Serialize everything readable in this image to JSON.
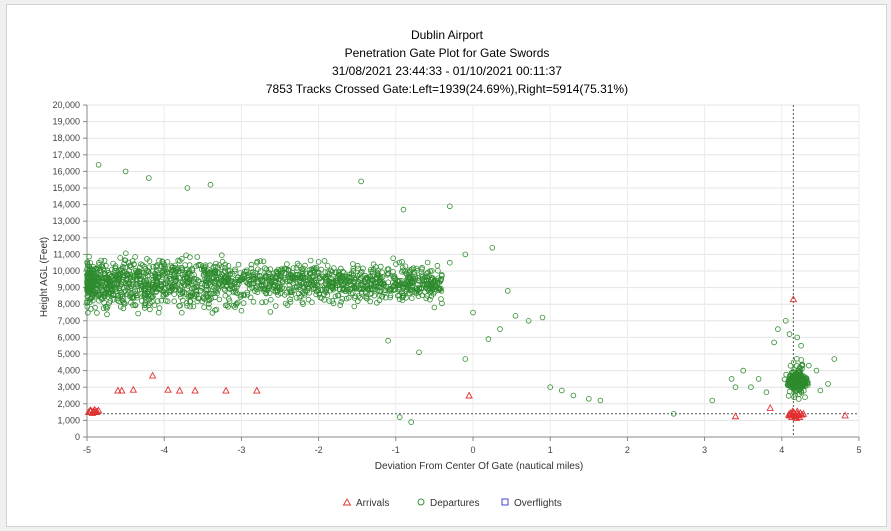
{
  "chart_data": {
    "type": "scatter",
    "title_lines": [
      "Dublin Airport",
      "Penetration Gate Plot for Gate Swords",
      "31/08/2021 23:44:33 - 01/10/2021 00:11:37",
      "7853 Tracks Crossed Gate:Left=1939(24.69%),Right=5914(75.31%)"
    ],
    "xlabel": "Deviation From Center Of Gate (nautical miles)",
    "ylabel": "Height AGL (Feet)",
    "xlim": [
      -5,
      5
    ],
    "ylim": [
      0,
      20000
    ],
    "x_ticks": [
      -5,
      -4,
      -3,
      -2,
      -1,
      0,
      1,
      2,
      3,
      4,
      5
    ],
    "x_tick_labels": [
      "-5",
      "-4",
      "-3",
      "-2",
      "-1",
      "0",
      "1",
      "2",
      "3",
      "4",
      "5"
    ],
    "y_ticks": [
      0,
      1000,
      2000,
      3000,
      4000,
      5000,
      6000,
      7000,
      8000,
      9000,
      10000,
      11000,
      12000,
      13000,
      14000,
      15000,
      16000,
      17000,
      18000,
      19000,
      20000
    ],
    "y_tick_labels": [
      "0",
      "1,000",
      "2,000",
      "3,000",
      "4,000",
      "5,000",
      "6,000",
      "7,000",
      "8,000",
      "9,000",
      "10,000",
      "11,000",
      "12,000",
      "13,000",
      "14,000",
      "15,000",
      "16,000",
      "17,000",
      "18,000",
      "19,000",
      "20,000"
    ],
    "grid": true,
    "reference_lines": {
      "vertical_x": 4.15,
      "horizontal_y": 1400
    },
    "legend_position": "bottom-center",
    "legend": [
      {
        "name": "Arrivals",
        "marker": "triangle",
        "color": "#e03030"
      },
      {
        "name": "Departures",
        "marker": "circle",
        "color": "#2e8b2e"
      },
      {
        "name": "Overflights",
        "marker": "square",
        "color": "#3030d0"
      }
    ],
    "series": [
      {
        "name": "Arrivals",
        "points": [
          [
            -4.98,
            1500
          ],
          [
            -4.95,
            1600
          ],
          [
            -4.92,
            1550
          ],
          [
            -4.9,
            1650
          ],
          [
            -4.88,
            1500
          ],
          [
            -4.85,
            1600
          ],
          [
            -4.93,
            1450
          ],
          [
            -4.87,
            1550
          ],
          [
            -4.96,
            1600
          ],
          [
            -4.9,
            1500
          ],
          [
            -4.6,
            2800
          ],
          [
            -4.55,
            2800
          ],
          [
            -4.4,
            2850
          ],
          [
            -4.15,
            3700
          ],
          [
            -3.95,
            2850
          ],
          [
            -3.8,
            2800
          ],
          [
            -3.6,
            2800
          ],
          [
            -3.2,
            2800
          ],
          [
            -2.8,
            2800
          ],
          [
            -0.05,
            2500
          ],
          [
            3.4,
            1250
          ],
          [
            3.85,
            1750
          ],
          [
            4.15,
            8300
          ],
          [
            4.82,
            1300
          ],
          [
            4.1,
            1300
          ],
          [
            4.12,
            1400
          ],
          [
            4.14,
            1350
          ],
          [
            4.16,
            1450
          ],
          [
            4.18,
            1300
          ],
          [
            4.2,
            1400
          ],
          [
            4.22,
            1350
          ],
          [
            4.24,
            1450
          ],
          [
            4.13,
            1200
          ],
          [
            4.17,
            1250
          ],
          [
            4.19,
            1150
          ],
          [
            4.21,
            1300
          ],
          [
            4.11,
            1450
          ],
          [
            4.15,
            1500
          ],
          [
            4.23,
            1200
          ],
          [
            4.26,
            1350
          ],
          [
            4.09,
            1350
          ],
          [
            4.14,
            1550
          ],
          [
            4.2,
            1550
          ],
          [
            4.28,
            1400
          ]
        ]
      },
      {
        "name": "Departures",
        "points": [
          [
            -4.85,
            16400
          ],
          [
            -4.5,
            16000
          ],
          [
            -4.2,
            15600
          ],
          [
            -3.7,
            15000
          ],
          [
            -3.4,
            15200
          ],
          [
            -1.45,
            15400
          ],
          [
            -0.9,
            13700
          ],
          [
            -0.3,
            13900
          ],
          [
            -0.3,
            10500
          ],
          [
            -0.1,
            11000
          ],
          [
            0.25,
            11400
          ],
          [
            -0.6,
            9600
          ],
          [
            -0.5,
            7800
          ],
          [
            0.0,
            7500
          ],
          [
            0.2,
            5900
          ],
          [
            0.45,
            8800
          ],
          [
            0.55,
            7300
          ],
          [
            0.72,
            7000
          ],
          [
            0.9,
            7200
          ],
          [
            0.35,
            6500
          ],
          [
            -0.95,
            1200
          ],
          [
            -0.8,
            900
          ],
          [
            -1.1,
            5800
          ],
          [
            -0.7,
            5100
          ],
          [
            -0.1,
            4700
          ],
          [
            1.0,
            3000
          ],
          [
            1.15,
            2800
          ],
          [
            1.3,
            2500
          ],
          [
            1.5,
            2300
          ],
          [
            1.65,
            2200
          ],
          [
            2.6,
            1400
          ],
          [
            3.1,
            2200
          ],
          [
            3.35,
            3500
          ],
          [
            3.4,
            3000
          ],
          [
            3.5,
            4000
          ],
          [
            3.6,
            3000
          ],
          [
            3.7,
            3500
          ],
          [
            3.9,
            5700
          ],
          [
            3.95,
            6500
          ],
          [
            4.05,
            7000
          ],
          [
            4.1,
            6200
          ],
          [
            4.2,
            6000
          ],
          [
            4.25,
            5500
          ],
          [
            4.35,
            4300
          ],
          [
            4.45,
            4000
          ],
          [
            4.6,
            3200
          ],
          [
            4.68,
            4700
          ],
          [
            3.8,
            2700
          ],
          [
            4.5,
            2800
          ],
          [
            4.3,
            2400
          ]
        ]
      },
      {
        "name": "Overflights",
        "points": []
      }
    ]
  }
}
